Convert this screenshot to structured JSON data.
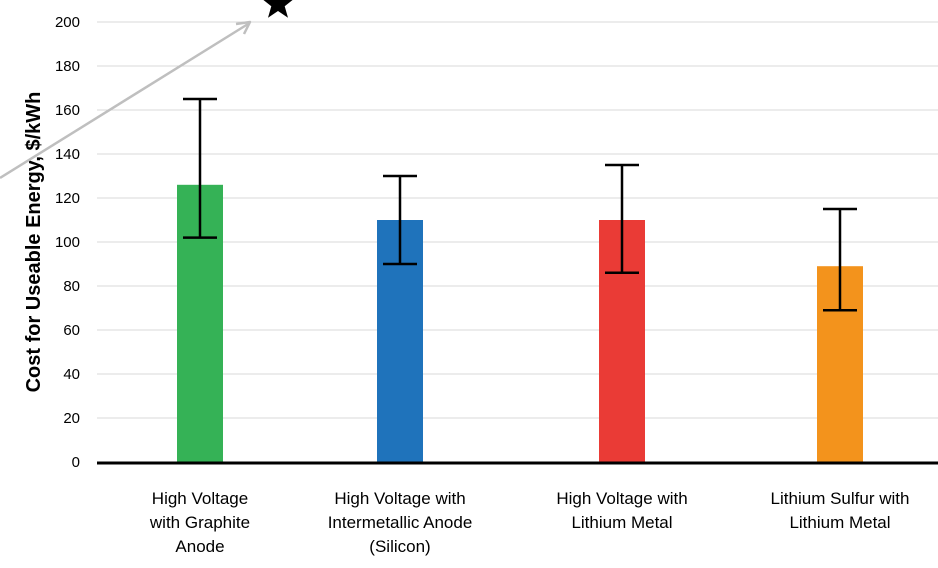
{
  "chart_data": {
    "type": "bar",
    "title": "",
    "xlabel": "",
    "ylabel": "Cost for Useable Energy, $/kWh",
    "ylim": [
      0,
      200
    ],
    "yticks": [
      0,
      20,
      40,
      60,
      80,
      100,
      120,
      140,
      160,
      180,
      200
    ],
    "grid": true,
    "legend": "none",
    "categories": [
      [
        "High Voltage",
        "with Graphite",
        "Anode"
      ],
      [
        "High Voltage with",
        "Intermetallic Anode",
        "(Silicon)"
      ],
      [
        "High Voltage with",
        "Lithium Metal"
      ],
      [
        "Lithium Sulfur with",
        "Lithium Metal"
      ]
    ],
    "values": [
      126,
      110,
      110,
      89
    ],
    "error_low": [
      102,
      90,
      86,
      69
    ],
    "error_high": [
      165,
      130,
      135,
      115
    ],
    "colors": [
      "#35b256",
      "#1f73bb",
      "#ea3b36",
      "#f3931c"
    ],
    "annotations": [
      {
        "type": "star-marker",
        "color": "#000000"
      },
      {
        "type": "arrow",
        "color": "#bfbfbf"
      }
    ]
  }
}
